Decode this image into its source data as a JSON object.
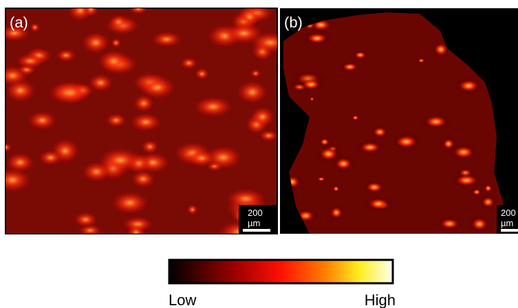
{
  "panels": [
    {
      "label": "(a)",
      "scale_value": "200",
      "scale_unit": "µm"
    },
    {
      "label": "(b)",
      "scale_value": "200",
      "scale_unit": "µm"
    }
  ],
  "colorbar": {
    "low_label": "Low",
    "high_label": "High"
  }
}
